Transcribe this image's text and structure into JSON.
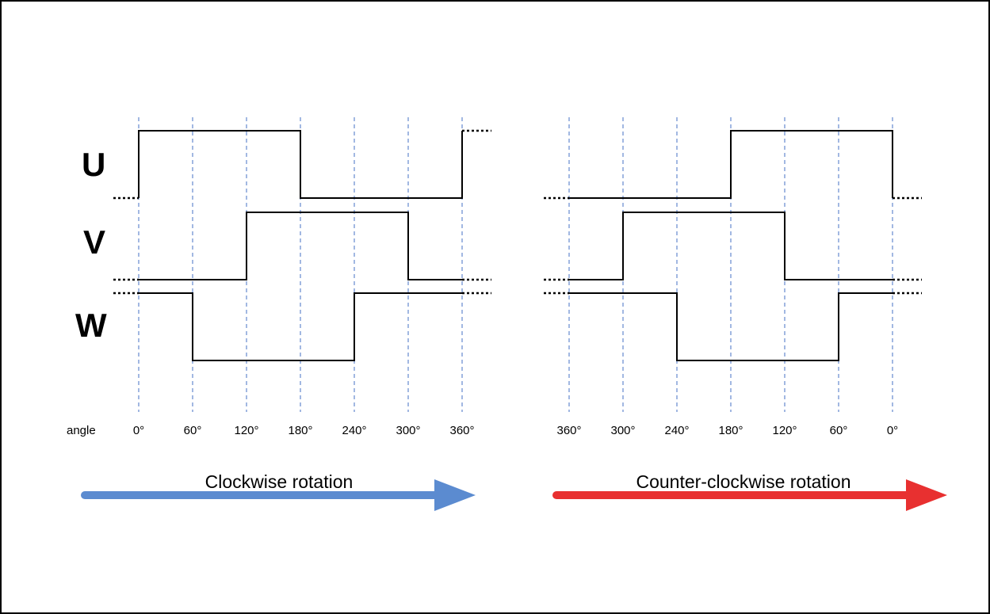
{
  "signals": {
    "u_label": "U",
    "v_label": "V",
    "w_label": "W"
  },
  "angle_label": "angle",
  "clockwise": {
    "angles": [
      "0°",
      "60°",
      "120°",
      "180°",
      "240°",
      "300°",
      "360°"
    ],
    "caption": "Clockwise rotation",
    "arrow_color": "#5b8bd0"
  },
  "counter_clockwise": {
    "angles": [
      "360°",
      "300°",
      "240°",
      "180°",
      "120°",
      "60°",
      "0°"
    ],
    "caption": "Counter-clockwise rotation",
    "arrow_color": "#e83030"
  },
  "colors": {
    "gridline": "#4472c4",
    "waveform": "#000000"
  }
}
